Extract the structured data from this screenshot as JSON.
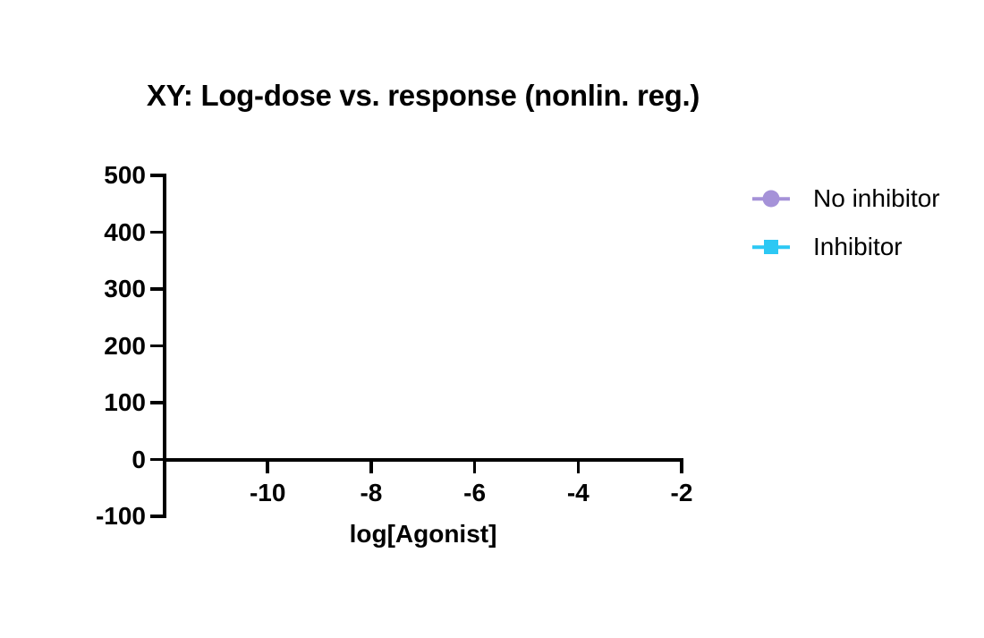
{
  "page": {
    "background_color": "#ffffff",
    "text_color": "#000000"
  },
  "chart_data": {
    "type": "line",
    "title": "XY: Log-dose vs. response (nonlin. reg.)",
    "xlabel": "log[Agonist]",
    "ylabel": "",
    "xlim": [
      -12,
      -2
    ],
    "ylim": [
      -100,
      500
    ],
    "xticks": [
      -10,
      -8,
      -6,
      -4,
      -2
    ],
    "yticks": [
      500,
      400,
      300,
      200,
      100,
      0,
      -100
    ],
    "grid": false,
    "axis_color": "#000000",
    "legend_position": "right",
    "series": [
      {
        "name": "No inhibitor",
        "marker": "circle",
        "color": "#a592d8",
        "x": [],
        "y": []
      },
      {
        "name": "Inhibitor",
        "marker": "square",
        "color": "#2cc8f4",
        "x": [],
        "y": []
      }
    ]
  }
}
